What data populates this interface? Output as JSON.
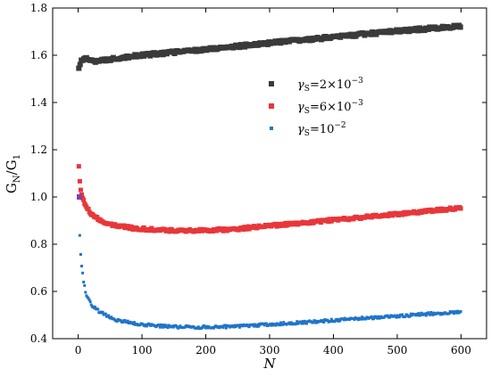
{
  "chart_data": {
    "type": "scatter",
    "xlabel": "N",
    "ylabel": {
      "base": "G",
      "sub1": "N",
      "sep": "/G",
      "sub2": "1"
    },
    "xlim": [
      -40,
      640
    ],
    "ylim": [
      0.4,
      1.8
    ],
    "x_ticks": [
      0,
      100,
      200,
      300,
      400,
      500,
      600
    ],
    "x_tick_labels": [
      "0",
      "100",
      "200",
      "300",
      "400",
      "500",
      "600"
    ],
    "y_ticks": [
      0.4,
      0.6,
      0.8,
      1.0,
      1.2,
      1.4,
      1.6,
      1.8
    ],
    "y_tick_labels": [
      "0.4",
      "0.6",
      "0.8",
      "1.0",
      "1.2",
      "1.4",
      "1.6",
      "1.8"
    ],
    "legend_position": "upper-center-right",
    "grid": false,
    "series": [
      {
        "name": "γS=2×10^-3",
        "legend": {
          "symbol": "γ",
          "sub": "S",
          "eq": "=2×10",
          "sup": "−3"
        },
        "color": "#3a3a3a",
        "marker": "square",
        "marker_size": 6,
        "x": [
          1,
          5,
          10,
          20,
          30,
          40,
          50,
          60,
          80,
          100,
          120,
          150,
          200,
          250,
          300,
          350,
          400,
          450,
          500,
          550,
          600
        ],
        "y": [
          1.54,
          1.58,
          1.585,
          1.58,
          1.575,
          1.578,
          1.583,
          1.588,
          1.595,
          1.6,
          1.605,
          1.613,
          1.625,
          1.638,
          1.652,
          1.664,
          1.677,
          1.69,
          1.702,
          1.713,
          1.722
        ]
      },
      {
        "name": "γS=6×10^-3",
        "legend": {
          "symbol": "γ",
          "sub": "S",
          "eq": "=6×10",
          "sup": "−3"
        },
        "color": "#e8373b",
        "marker": "square",
        "marker_size": 5,
        "x": [
          1,
          2,
          3,
          5,
          8,
          12,
          20,
          30,
          40,
          50,
          60,
          80,
          100,
          120,
          150,
          180,
          200,
          250,
          300,
          350,
          400,
          450,
          500,
          550,
          600
        ],
        "y": [
          1.13,
          1.08,
          1.05,
          1.02,
          0.99,
          0.96,
          0.93,
          0.91,
          0.895,
          0.885,
          0.878,
          0.87,
          0.865,
          0.862,
          0.858,
          0.857,
          0.858,
          0.865,
          0.878,
          0.89,
          0.902,
          0.915,
          0.928,
          0.94,
          0.955
        ]
      },
      {
        "name": "γS=10^-2",
        "legend": {
          "symbol": "γ",
          "sub": "S",
          "eq": "=10",
          "sup": "−2"
        },
        "color": "#1f74c8",
        "marker": "square",
        "marker_size": 3,
        "x": [
          1,
          2,
          3,
          5,
          8,
          12,
          20,
          30,
          40,
          50,
          60,
          80,
          100,
          120,
          150,
          180,
          200,
          250,
          300,
          350,
          400,
          450,
          500,
          550,
          600
        ],
        "y": [
          1.0,
          0.87,
          0.8,
          0.72,
          0.65,
          0.59,
          0.545,
          0.52,
          0.505,
          0.49,
          0.48,
          0.468,
          0.46,
          0.455,
          0.45,
          0.448,
          0.449,
          0.452,
          0.46,
          0.468,
          0.478,
          0.488,
          0.495,
          0.505,
          0.513
        ]
      }
    ],
    "extra_marker": {
      "x": 2,
      "y": 1.0,
      "color": "#8a3ea0"
    }
  }
}
